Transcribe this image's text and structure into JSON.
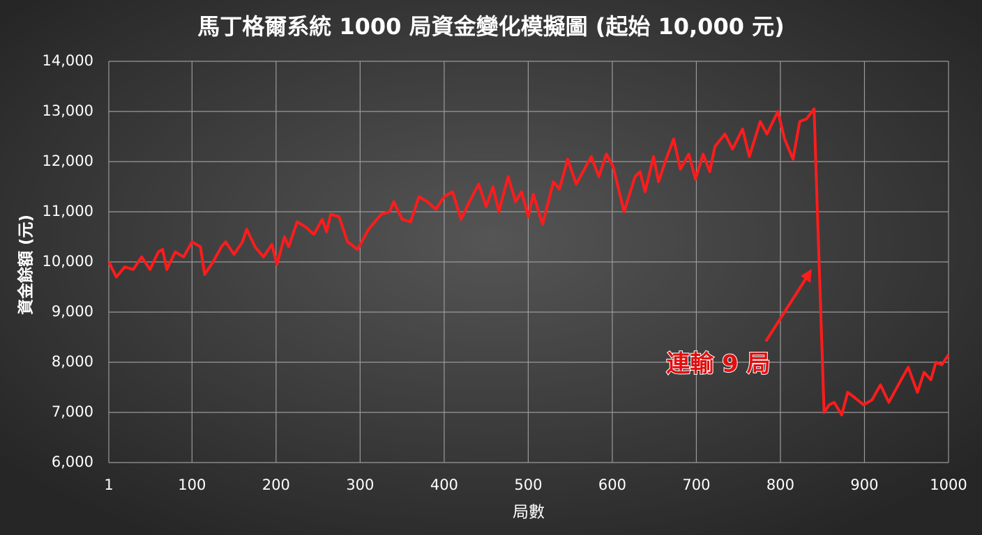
{
  "chart_data": {
    "type": "line",
    "title": "馬丁格爾系統 1000 局資金變化模擬圖 (起始 10,000 元)",
    "xlabel": "局數",
    "ylabel": "資金餘額 (元)",
    "annotation": "連輸 9 局",
    "color": "#ff1c1c",
    "grid": true,
    "xlim": [
      1,
      1000
    ],
    "xticks": [
      1,
      100,
      200,
      300,
      400,
      500,
      600,
      700,
      800,
      900,
      1000
    ],
    "ylim": [
      6000,
      14000
    ],
    "yticks": [
      {
        "value": 6000,
        "label": "6,000"
      },
      {
        "value": 7000,
        "label": "7,000"
      },
      {
        "value": 8000,
        "label": "8,000"
      },
      {
        "value": 9000,
        "label": "9,000"
      },
      {
        "value": 10000,
        "label": "10,000"
      },
      {
        "value": 11000,
        "label": "11,000"
      },
      {
        "value": 12000,
        "label": "12,000"
      },
      {
        "value": 13000,
        "label": "13,000"
      },
      {
        "value": 14000,
        "label": "14,000"
      }
    ],
    "x": [
      1,
      10,
      20,
      30,
      40,
      50,
      60,
      65,
      70,
      80,
      90,
      100,
      110,
      115,
      125,
      135,
      140,
      150,
      160,
      165,
      175,
      185,
      195,
      201,
      210,
      215,
      225,
      235,
      245,
      255,
      260,
      265,
      275,
      285,
      297,
      310,
      315,
      325,
      335,
      340,
      350,
      360,
      370,
      380,
      390,
      400,
      410,
      420,
      430,
      441,
      450,
      458,
      465,
      476,
      485,
      492,
      500,
      506,
      517,
      530,
      537,
      547,
      557,
      575,
      584,
      593,
      601,
      614,
      627,
      633,
      639,
      649,
      655,
      664,
      673,
      681,
      691,
      699,
      708,
      716,
      722,
      734,
      743,
      755,
      763,
      776,
      784,
      797,
      805,
      815,
      823,
      831,
      840,
      845,
      852,
      858,
      864,
      873,
      880,
      888,
      899,
      909,
      919,
      929,
      942,
      952,
      963,
      971,
      979,
      985,
      992,
      1000
    ],
    "values": [
      10000,
      9700,
      9900,
      9850,
      10100,
      9850,
      10200,
      10250,
      9850,
      10200,
      10100,
      10400,
      10300,
      9750,
      10000,
      10300,
      10400,
      10150,
      10400,
      10650,
      10300,
      10100,
      10350,
      9950,
      10500,
      10300,
      10800,
      10700,
      10550,
      10850,
      10600,
      10950,
      10900,
      10400,
      10250,
      10650,
      10750,
      10950,
      11000,
      11200,
      10850,
      10800,
      11300,
      11200,
      11050,
      11300,
      11400,
      10850,
      11200,
      11550,
      11100,
      11500,
      11000,
      11700,
      11200,
      11400,
      10900,
      11350,
      10750,
      11600,
      11450,
      12050,
      11550,
      12100,
      11700,
      12150,
      11900,
      11000,
      11700,
      11800,
      11400,
      12100,
      11600,
      12050,
      12450,
      11850,
      12150,
      11650,
      12150,
      11800,
      12300,
      12550,
      12250,
      12650,
      12100,
      12800,
      12550,
      13000,
      12450,
      12050,
      12800,
      12850,
      13050,
      10500,
      7000,
      7150,
      7200,
      6950,
      7400,
      7300,
      7150,
      7250,
      7550,
      7200,
      7600,
      7900,
      7400,
      7800,
      7650,
      8000,
      7950,
      8150
    ]
  }
}
